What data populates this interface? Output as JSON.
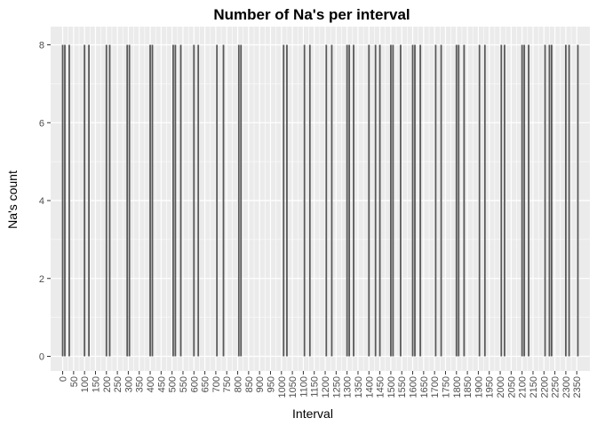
{
  "chart_data": {
    "type": "bar",
    "title": "Number of Na's per interval",
    "xlabel": "Interval",
    "ylabel": "Na's count",
    "ylim": [
      0,
      8
    ],
    "yticks": [
      "0",
      "2",
      "4",
      "6",
      "8"
    ],
    "xlim": [
      -55,
      2410
    ],
    "xticks": [
      "0",
      "50",
      "100",
      "150",
      "200",
      "250",
      "300",
      "350",
      "400",
      "450",
      "500",
      "550",
      "600",
      "650",
      "700",
      "750",
      "800",
      "850",
      "900",
      "950",
      "1000",
      "1050",
      "1100",
      "1150",
      "1200",
      "1250",
      "1300",
      "1350",
      "1400",
      "1450",
      "1500",
      "1550",
      "1600",
      "1650",
      "1700",
      "1750",
      "1800",
      "1850",
      "1900",
      "1950",
      "2000",
      "2050",
      "2100",
      "2150",
      "2200",
      "2250",
      "2300",
      "2350"
    ],
    "grid": true,
    "x": [
      0,
      10,
      30,
      100,
      120,
      200,
      215,
      295,
      305,
      400,
      410,
      505,
      515,
      540,
      600,
      620,
      705,
      735,
      805,
      815,
      1010,
      1025,
      1105,
      1130,
      1205,
      1230,
      1300,
      1310,
      1330,
      1400,
      1430,
      1450,
      1500,
      1510,
      1545,
      1600,
      1610,
      1635,
      1705,
      1730,
      1800,
      1810,
      1835,
      1905,
      1930,
      2005,
      2020,
      2100,
      2110,
      2130,
      2205,
      2225,
      2235,
      2300,
      2315,
      2355
    ],
    "values": [
      8,
      8,
      8,
      8,
      8,
      8,
      8,
      8,
      8,
      8,
      8,
      8,
      8,
      8,
      8,
      8,
      8,
      8,
      8,
      8,
      8,
      8,
      8,
      8,
      8,
      8,
      8,
      8,
      8,
      8,
      8,
      8,
      8,
      8,
      8,
      8,
      8,
      8,
      8,
      8,
      8,
      8,
      8,
      8,
      8,
      8,
      8,
      8,
      8,
      8,
      8,
      8,
      8,
      8,
      8,
      8
    ]
  }
}
